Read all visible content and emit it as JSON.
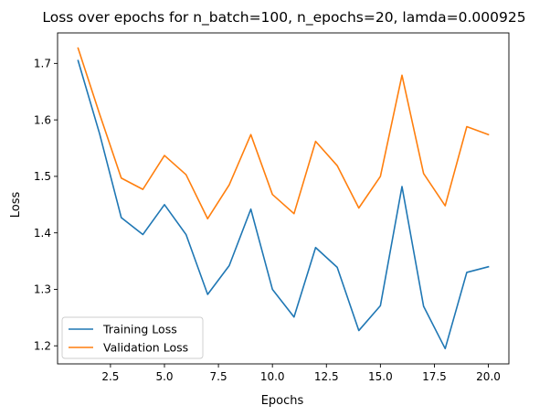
{
  "chart_data": {
    "type": "line",
    "title": "Loss over epochs for n_batch=100, n_epochs=20, lamda=0.000925",
    "xlabel": "Epochs",
    "ylabel": "Loss",
    "xlim": [
      0.05,
      20.95
    ],
    "ylim": [
      1.168,
      1.754
    ],
    "grid": false,
    "legend_placement": "lower-left",
    "x_ticks": [
      2.5,
      5.0,
      7.5,
      10.0,
      12.5,
      15.0,
      17.5,
      20.0
    ],
    "x_tick_labels": [
      "2.5",
      "5.0",
      "7.5",
      "10.0",
      "12.5",
      "15.0",
      "17.5",
      "20.0"
    ],
    "y_ticks": [
      1.2,
      1.3,
      1.4,
      1.5,
      1.6,
      1.7
    ],
    "y_tick_labels": [
      "1.2",
      "1.3",
      "1.4",
      "1.5",
      "1.6",
      "1.7"
    ],
    "x": [
      1,
      2,
      3,
      4,
      5,
      6,
      7,
      8,
      9,
      10,
      11,
      12,
      13,
      14,
      15,
      16,
      17,
      18,
      19,
      20
    ],
    "series": [
      {
        "name": "Training Loss",
        "color": "#1f77b4",
        "values": [
          1.705,
          1.575,
          1.427,
          1.397,
          1.45,
          1.397,
          1.291,
          1.342,
          1.442,
          1.3,
          1.251,
          1.374,
          1.339,
          1.227,
          1.271,
          1.482,
          1.27,
          1.195,
          1.33,
          1.34
        ]
      },
      {
        "name": "Validation Loss",
        "color": "#ff7f0e",
        "values": [
          1.727,
          1.61,
          1.497,
          1.477,
          1.537,
          1.503,
          1.425,
          1.485,
          1.574,
          1.468,
          1.434,
          1.562,
          1.519,
          1.444,
          1.5,
          1.679,
          1.505,
          1.448,
          1.588,
          1.574
        ]
      }
    ]
  }
}
